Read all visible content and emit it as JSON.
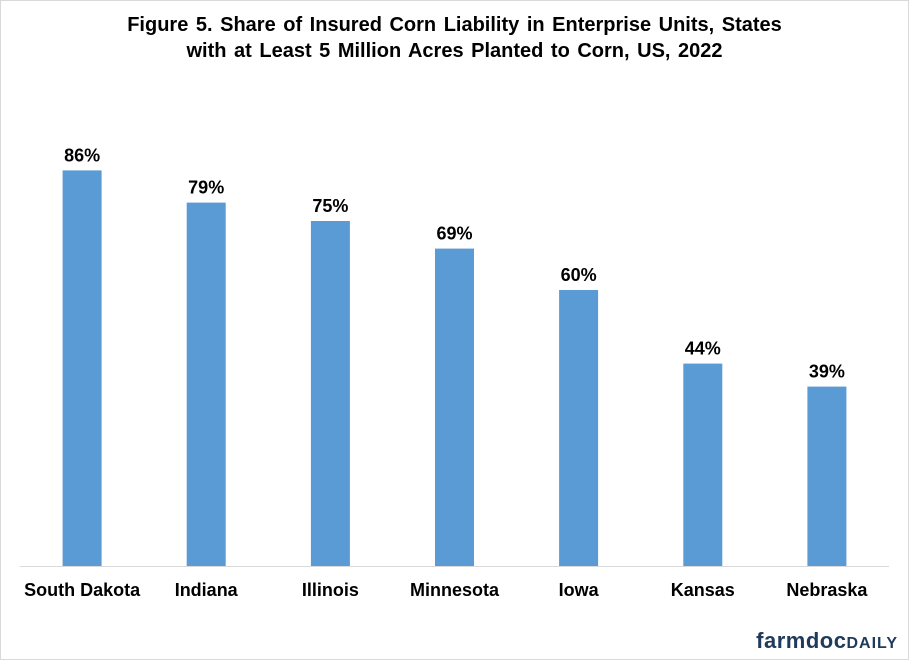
{
  "chart_data": {
    "type": "bar",
    "title_line1": "Figure  5. Share of Insured  Corn Liability  in Enterprise Units, States",
    "title_line2": "with at Least 5 Million Acres Planted  to Corn, US, 2022",
    "categories": [
      "South Dakota",
      "Indiana",
      "Illinois",
      "Minnesota",
      "Iowa",
      "Kansas",
      "Nebraska"
    ],
    "values": [
      86,
      79,
      75,
      69,
      60,
      44,
      39
    ],
    "data_labels": [
      "86%",
      "79%",
      "75%",
      "69%",
      "60%",
      "44%",
      "39%"
    ],
    "ylim": [
      0,
      100
    ],
    "grid": false,
    "legend": "none",
    "bar_color": "#5b9bd5",
    "axis_color": "#d9d9d9"
  },
  "brand": {
    "part1": "farmdoc",
    "part2": "DAILY",
    "color": "#1f3a5a"
  }
}
